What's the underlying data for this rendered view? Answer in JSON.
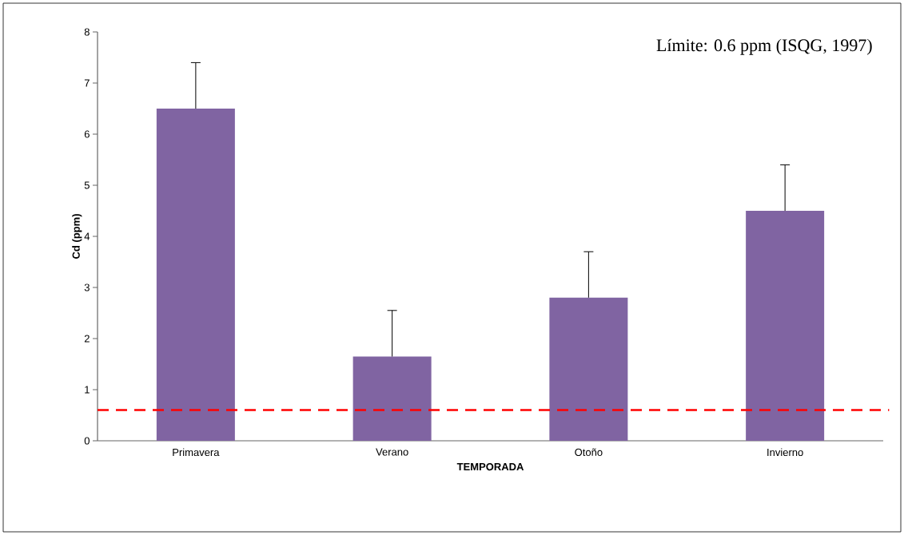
{
  "chart_data": {
    "type": "bar",
    "xlabel": "TEMPORADA",
    "ylabel": "Cd (ppm)",
    "categories": [
      "Primavera",
      "Verano",
      "Otoño",
      "Invierno"
    ],
    "values": [
      6.5,
      1.65,
      2.8,
      4.5
    ],
    "color": "#8064a2",
    "errors": [
      [
        6.5,
        7.4
      ],
      [
        1.65,
        2.55
      ],
      [
        2.8,
        3.7
      ],
      [
        4.5,
        5.4
      ]
    ],
    "ylim": [
      0,
      8
    ],
    "yticks": [
      0,
      1,
      2,
      3,
      4,
      5,
      6,
      7,
      8
    ],
    "ref_lines": [
      {
        "axis": "y",
        "value": 0.6,
        "color": "#ff0000",
        "line_style": "dashed"
      }
    ],
    "annotations": [
      "Límite: 0.6 ppm (ISQG, 1997)"
    ]
  }
}
